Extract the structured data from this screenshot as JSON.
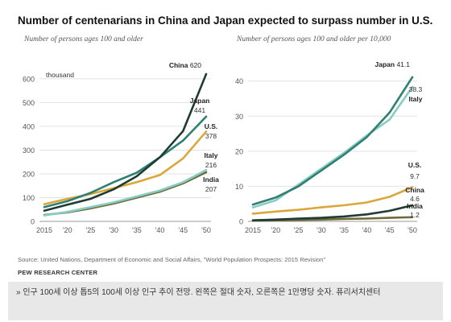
{
  "title": "Number of centenarians in China and Japan expected to surpass number in U.S.",
  "source": "Source: United Nations, Department of Economic and Social Affairs, \"World Population Prospects: 2015 Revision\"",
  "org": "PEW RESEARCH CENTER",
  "caption": "» 인구 100세 이상 톱5의 100세 이상 인구 추이 전망. 왼쪽은 절대 숫자, 오른쪽은 1만명당 숫자. 퓨리서치센터",
  "chart_data": [
    {
      "type": "line",
      "subtitle": "Number of persons ages 100 and older",
      "unit_label": "thousand",
      "x": [
        "2015",
        "'20",
        "'25",
        "'30",
        "'35",
        "'40",
        "'45",
        "'50"
      ],
      "ylim": [
        0,
        620
      ],
      "yticks": [
        0,
        100,
        200,
        300,
        400,
        500,
        600
      ],
      "series": [
        {
          "name": "China",
          "end_label": "620",
          "color": "#1f3b33",
          "values": [
            45,
            70,
            95,
            135,
            190,
            270,
            380,
            620
          ]
        },
        {
          "name": "Japan",
          "end_label": "441",
          "color": "#2f7f72",
          "values": [
            60,
            85,
            120,
            165,
            205,
            270,
            340,
            441
          ]
        },
        {
          "name": "U.S.",
          "end_label": "378",
          "color": "#d9a73a",
          "values": [
            72,
            95,
            115,
            140,
            165,
            195,
            265,
            378
          ]
        },
        {
          "name": "Italy",
          "end_label": "216",
          "color": "#88ccc2",
          "values": [
            25,
            40,
            60,
            80,
            105,
            130,
            165,
            216
          ]
        },
        {
          "name": "India",
          "end_label": "207",
          "color": "#6e6a3a",
          "values": [
            27,
            38,
            55,
            75,
            100,
            125,
            160,
            207
          ]
        }
      ]
    },
    {
      "type": "line",
      "subtitle": "Number of persons ages 100 and older per 10,000",
      "x": [
        "2015",
        "'20",
        "'25",
        "'30",
        "'35",
        "'40",
        "'45",
        "'50"
      ],
      "ylim": [
        0,
        42
      ],
      "yticks": [
        0,
        10,
        20,
        30,
        40
      ],
      "series": [
        {
          "name": "Japan",
          "end_label": "41.1",
          "color": "#2f7f72",
          "values": [
            4.8,
            6.8,
            10,
            14.5,
            19,
            24,
            31,
            41.1
          ]
        },
        {
          "name": "Italy",
          "end_label": "38.3",
          "color": "#88ccc2",
          "values": [
            4,
            6,
            10.5,
            15,
            19.5,
            24.5,
            29,
            38.3
          ]
        },
        {
          "name": "U.S.",
          "end_label": "9.7",
          "color": "#d9a73a",
          "values": [
            2.2,
            2.8,
            3.3,
            4,
            4.6,
            5.4,
            7,
            9.7
          ]
        },
        {
          "name": "China",
          "end_label": "4.6",
          "color": "#1f3b33",
          "values": [
            0.3,
            0.5,
            0.8,
            1.0,
            1.4,
            2.0,
            3.0,
            4.6
          ]
        },
        {
          "name": "India",
          "end_label": "1.2",
          "color": "#6e6a3a",
          "values": [
            0.2,
            0.3,
            0.4,
            0.5,
            0.7,
            0.8,
            1.0,
            1.2
          ]
        }
      ]
    }
  ]
}
